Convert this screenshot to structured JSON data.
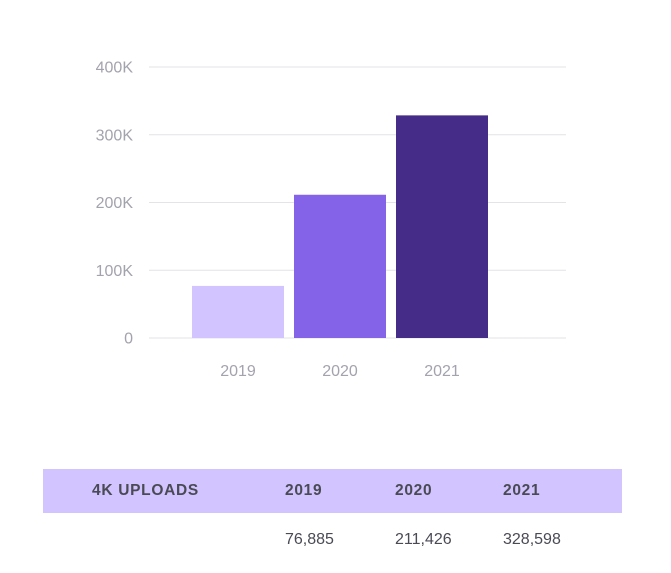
{
  "chart_data": {
    "type": "bar",
    "categories": [
      "2019",
      "2020",
      "2021"
    ],
    "values": [
      76885,
      211426,
      328598
    ],
    "y_ticks": [
      "0",
      "100K",
      "200K",
      "300K",
      "400K"
    ],
    "ylim": [
      0,
      400000
    ],
    "grid": true,
    "colors": [
      "#d2c4ff",
      "#8563e8",
      "#452c88"
    ]
  },
  "table": {
    "headers": [
      "4K UPLOADS",
      "2019",
      "2020",
      "2021"
    ],
    "rows": [
      [
        "",
        "76,885",
        "211,426",
        "328,598"
      ]
    ]
  }
}
